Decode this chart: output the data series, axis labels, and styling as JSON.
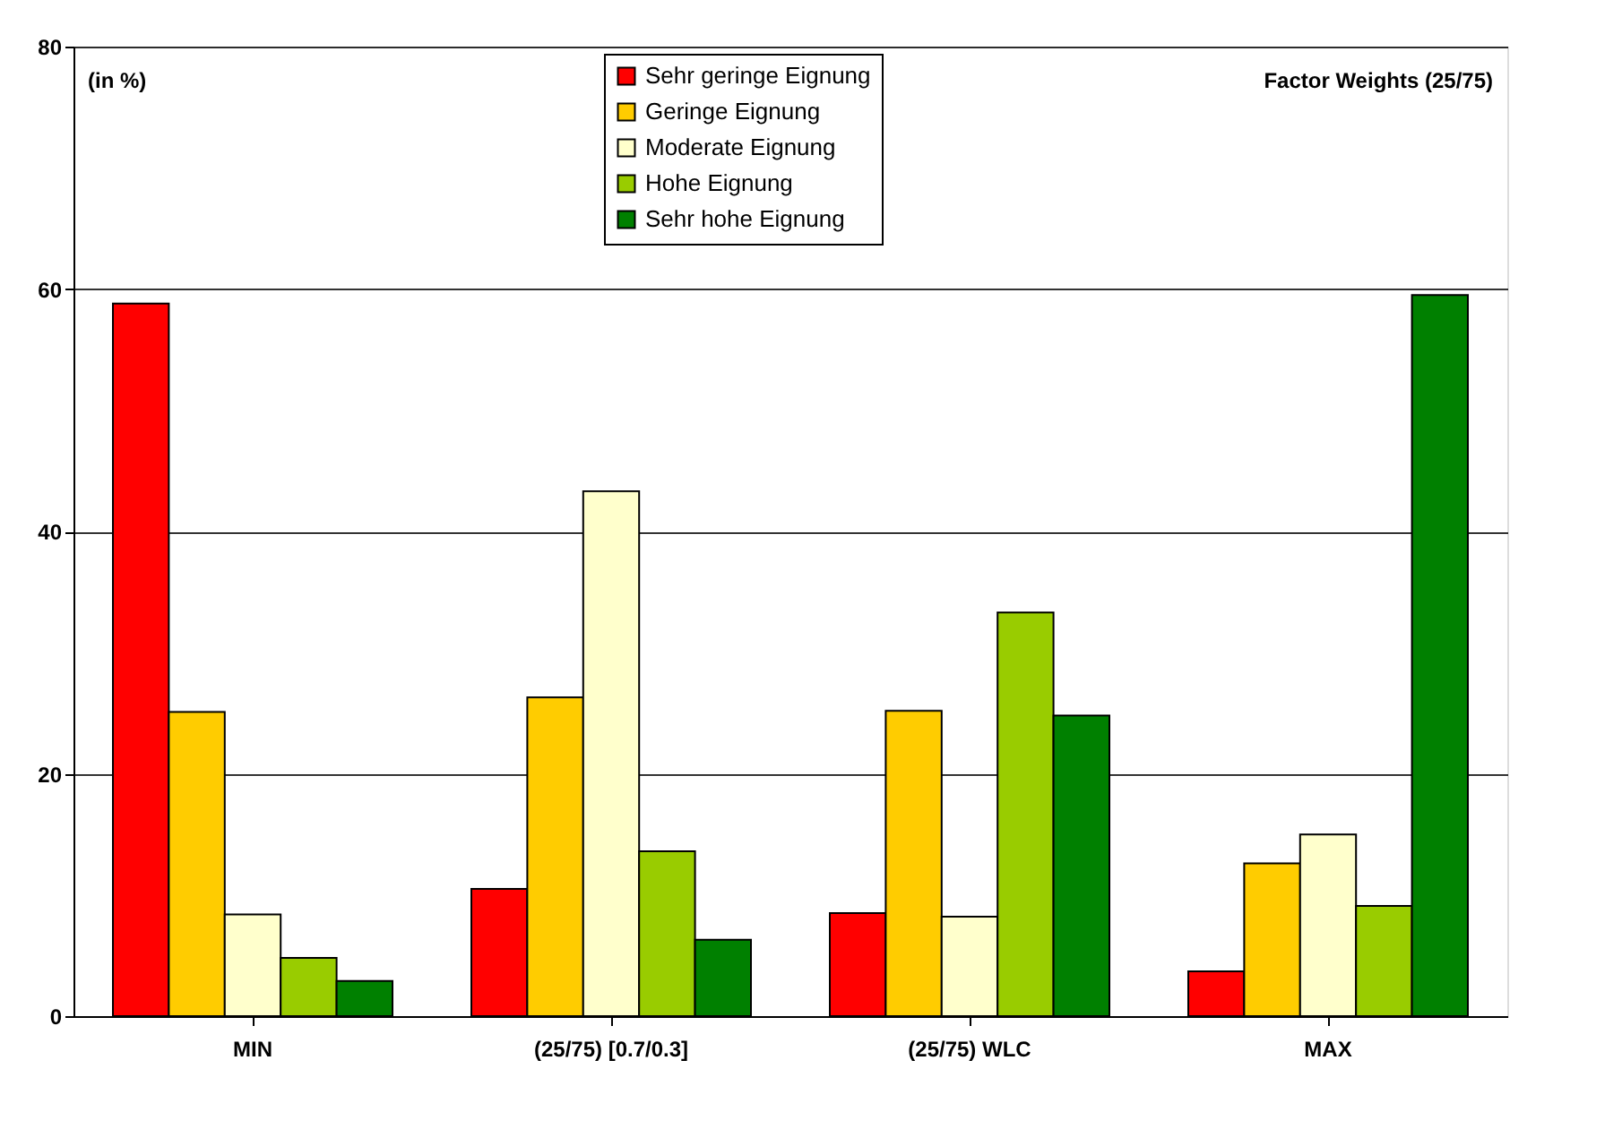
{
  "chart_data": {
    "type": "bar",
    "categories": [
      "MIN",
      "(25/75) [0.7/0.3]",
      "(25/75) WLC",
      "MAX"
    ],
    "series": [
      {
        "name": "Sehr geringe Eignung",
        "color": "#ff0000",
        "values": [
          58.8,
          10.5,
          8.5,
          3.7
        ]
      },
      {
        "name": "Geringe Eignung",
        "color": "#ffcc00",
        "values": [
          25.1,
          26.3,
          25.2,
          12.6
        ]
      },
      {
        "name": "Moderate Eignung",
        "color": "#ffffcc",
        "values": [
          8.4,
          43.3,
          8.2,
          15.0
        ]
      },
      {
        "name": "Hohe Eignung",
        "color": "#99cc00",
        "values": [
          4.8,
          13.6,
          33.3,
          9.1
        ]
      },
      {
        "name": "Sehr hohe Eignung",
        "color": "#008000",
        "values": [
          2.9,
          6.3,
          24.8,
          59.5
        ]
      }
    ],
    "ylim": [
      0,
      80
    ],
    "yticks": [
      0,
      20,
      40,
      60,
      80
    ],
    "grid": "y",
    "legend": "top",
    "annotations": [
      "(in %)",
      "Factor Weights (25/75)"
    ]
  }
}
